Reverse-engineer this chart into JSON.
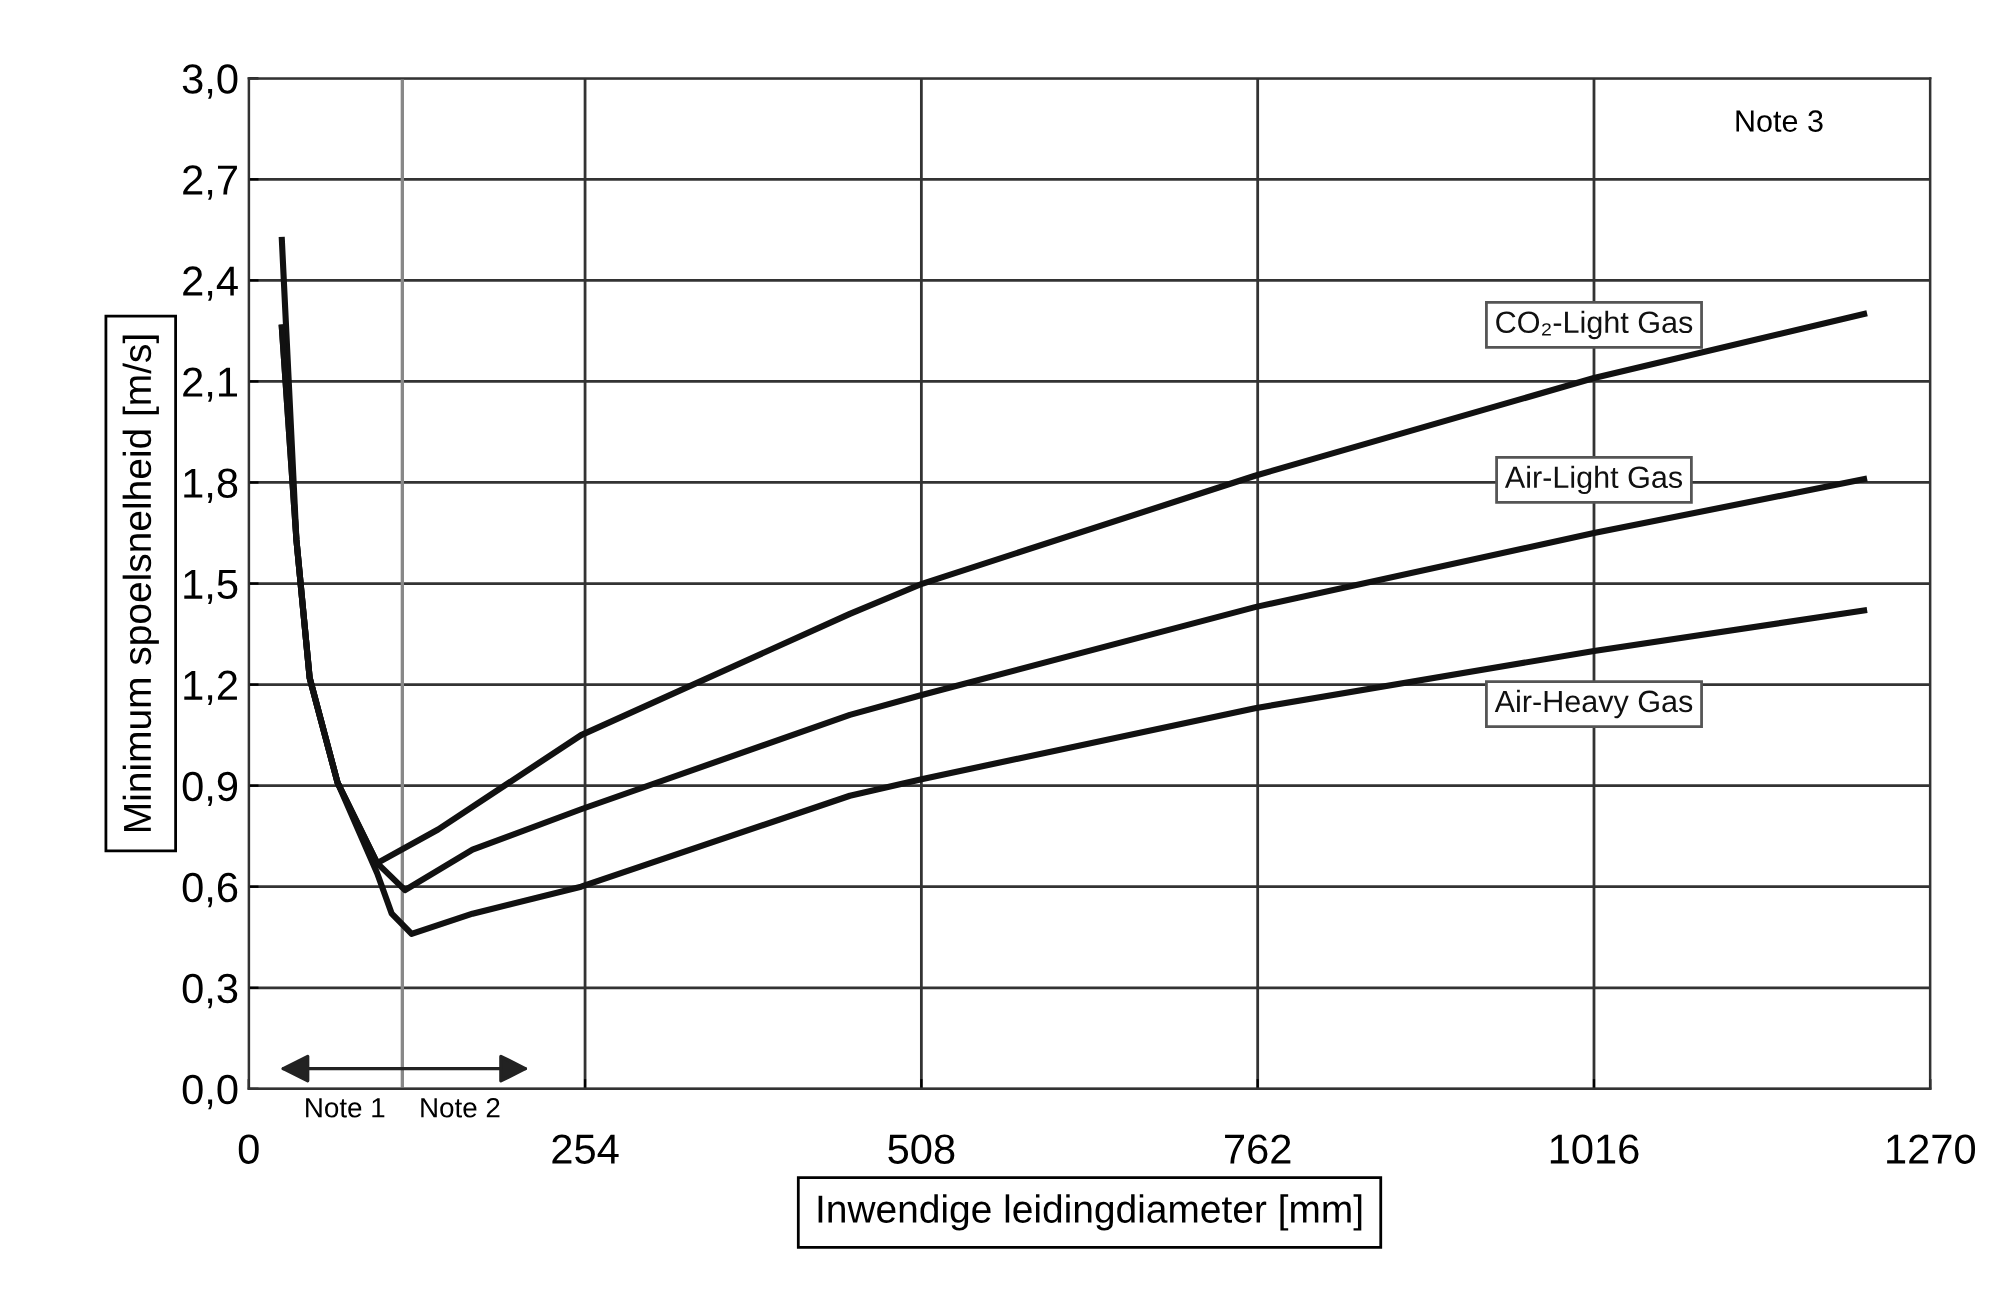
{
  "chart_data": {
    "type": "line",
    "xlabel": "Inwendige leidingdiameter [mm]",
    "ylabel": "Minimum spoelsnelheid [m/s]",
    "xlim": [
      0,
      1270
    ],
    "ylim": [
      0,
      3.0
    ],
    "xticks": [
      0,
      254,
      508,
      762,
      1016,
      1270
    ],
    "yticks": [
      {
        "value": 0,
        "label": "0,0"
      },
      {
        "value": 0.3,
        "label": "0,3"
      },
      {
        "value": 0.6,
        "label": "0,6"
      },
      {
        "value": 0.9,
        "label": "0,9"
      },
      {
        "value": 1.2,
        "label": "1,2"
      },
      {
        "value": 1.5,
        "label": "1,5"
      },
      {
        "value": 1.8,
        "label": "1,8"
      },
      {
        "value": 2.1,
        "label": "2,1"
      },
      {
        "value": 2.4,
        "label": "2,4"
      },
      {
        "value": 2.7,
        "label": "2,7"
      },
      {
        "value": 3.0,
        "label": "3,0"
      }
    ],
    "grid": true,
    "marker": "none",
    "line_style": "solid",
    "series": [
      {
        "name": "CO₂-Light Gas",
        "color": "#111111",
        "x": [
          25,
          36,
          46,
          67,
          97,
          143,
          251,
          454,
          509,
          760,
          1016,
          1220
        ],
        "values": [
          2.52,
          1.63,
          1.22,
          0.91,
          0.67,
          0.77,
          1.05,
          1.41,
          1.5,
          1.82,
          2.11,
          2.3
        ]
      },
      {
        "name": "Air-Light Gas",
        "color": "#111111",
        "x": [
          25,
          36,
          46,
          67,
          97,
          118,
          169,
          251,
          454,
          509,
          760,
          1016,
          1220
        ],
        "values": [
          2.26,
          1.63,
          1.22,
          0.91,
          0.67,
          0.59,
          0.71,
          0.83,
          1.11,
          1.17,
          1.43,
          1.65,
          1.81
        ]
      },
      {
        "name": "Air-Heavy Gas",
        "color": "#111111",
        "x": [
          25,
          36,
          46,
          67,
          97,
          108,
          123,
          169,
          251,
          454,
          509,
          760,
          1016,
          1220
        ],
        "values": [
          2.26,
          1.63,
          1.22,
          0.91,
          0.64,
          0.52,
          0.46,
          0.52,
          0.6,
          0.87,
          0.92,
          1.13,
          1.3,
          1.42
        ]
      }
    ],
    "ref_lines": [
      {
        "axis": "x",
        "value": 116,
        "color": "#888888",
        "line_style": "solid"
      }
    ],
    "annotations": [
      "Note 3",
      "Note 1",
      "Note 2"
    ]
  }
}
